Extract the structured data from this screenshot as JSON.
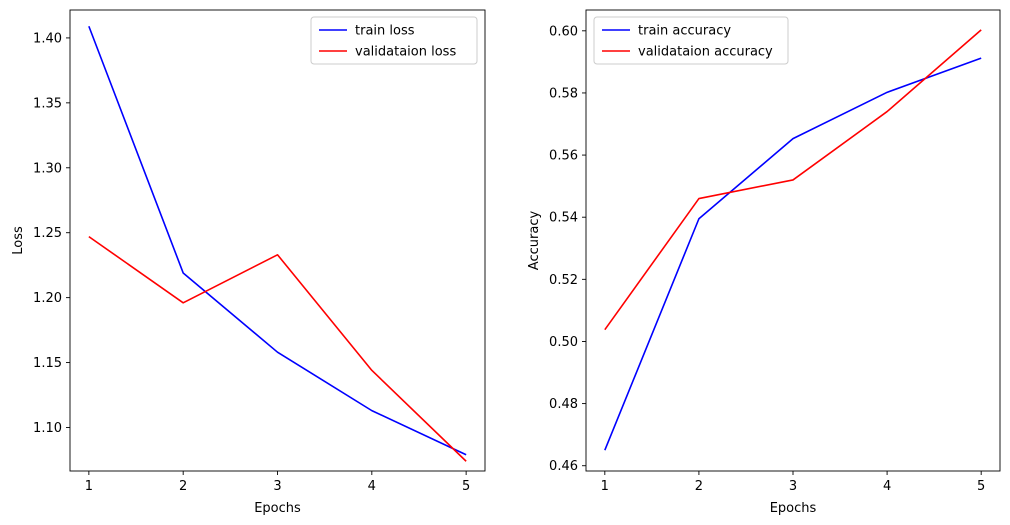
{
  "chart_data": [
    {
      "type": "line",
      "x": [
        1,
        2,
        3,
        4,
        5
      ],
      "xlabel": "Epochs",
      "ylabel": "Loss",
      "xlim": [
        0.8,
        5.2
      ],
      "ylim": [
        1.0665,
        1.4215
      ],
      "xticks": [
        1,
        2,
        3,
        4,
        5
      ],
      "yticks": [
        1.1,
        1.15,
        1.2,
        1.25,
        1.3,
        1.35,
        1.4
      ],
      "ytick_format": 2,
      "grid": false,
      "legend_position": "top-right",
      "series": [
        {
          "name": "train loss",
          "color": "#0000ff",
          "values": [
            1.409,
            1.219,
            1.158,
            1.113,
            1.079
          ]
        },
        {
          "name": "validataion loss",
          "color": "#ff0000",
          "values": [
            1.247,
            1.196,
            1.233,
            1.144,
            1.074
          ]
        }
      ]
    },
    {
      "type": "line",
      "x": [
        1,
        2,
        3,
        4,
        5
      ],
      "xlabel": "Epochs",
      "ylabel": "Accuracy",
      "xlim": [
        0.8,
        5.2
      ],
      "ylim": [
        0.4583,
        0.6067
      ],
      "xticks": [
        1,
        2,
        3,
        4,
        5
      ],
      "yticks": [
        0.46,
        0.48,
        0.5,
        0.52,
        0.54,
        0.56,
        0.58,
        0.6
      ],
      "ytick_format": 2,
      "grid": false,
      "legend_position": "top-left",
      "series": [
        {
          "name": "train accuracy",
          "color": "#0000ff",
          "values": [
            0.465,
            0.5395,
            0.5653,
            0.5802,
            0.5912
          ]
        },
        {
          "name": "validataion accuracy",
          "color": "#ff0000",
          "values": [
            0.5038,
            0.546,
            0.552,
            0.574,
            0.6003
          ]
        }
      ]
    }
  ]
}
